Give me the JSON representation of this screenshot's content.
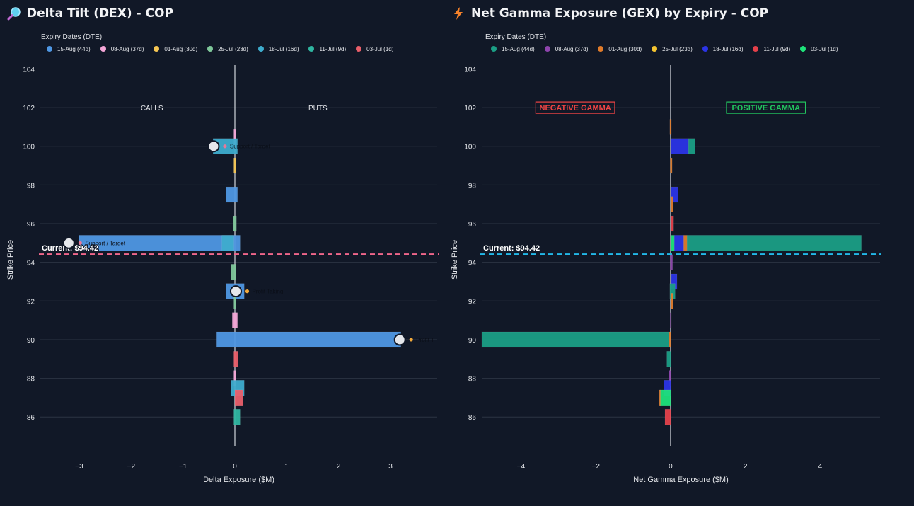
{
  "dex_panel": {
    "title": "Delta Tilt (DEX) - COP",
    "icon": "magnifier-icon",
    "legend_title": "Expiry Dates (DTE)",
    "legend": [
      {
        "label": "15-Aug (44d)",
        "color": "#4f97e3"
      },
      {
        "label": "08-Aug (37d)",
        "color": "#f5a6d8"
      },
      {
        "label": "01-Aug (30d)",
        "color": "#f6c653"
      },
      {
        "label": "25-Jul (23d)",
        "color": "#7fc79a"
      },
      {
        "label": "18-Jul (16d)",
        "color": "#3eaccd"
      },
      {
        "label": "11-Jul (9d)",
        "color": "#2fb6a1"
      },
      {
        "label": "03-Jul (1d)",
        "color": "#ea5f6a"
      }
    ],
    "calls_label": "CALLS",
    "puts_label": "PUTS",
    "current_label": "Current: $94.42",
    "current_line_color": "#f0668a",
    "annotations": [
      {
        "label": "Support / Target",
        "icon": "pin-icon",
        "strike": 100,
        "x": -0.41
      },
      {
        "label": "Support / Target",
        "icon": "pin-icon",
        "strike": 95,
        "x": -3.2
      },
      {
        "label": "Profit Taking",
        "icon": "moneybag-icon",
        "strike": 92.5,
        "x": 0.02
      },
      {
        "label": "Profit T",
        "icon": "moneybag-icon",
        "strike": 90,
        "x": 3.18
      }
    ],
    "chart_data": {
      "type": "bar",
      "orientation": "horizontal",
      "barmode": "stack",
      "xlabel": "Delta Exposure ($M)",
      "ylabel": "Strike Price",
      "xlim": [
        -3.75,
        3.9
      ],
      "ylim": [
        84.8,
        104.2
      ],
      "xticks": [
        -3,
        -2,
        -1,
        0,
        1,
        2,
        3
      ],
      "yticks": [
        86,
        88,
        90,
        92,
        94,
        96,
        98,
        100,
        102,
        104
      ],
      "xtick_labels": [
        "−3",
        "−2",
        "−1",
        "0",
        "1",
        "2",
        "3"
      ],
      "ytick_labels": [
        "86",
        "88",
        "90",
        "92",
        "94",
        "96",
        "98",
        "100",
        "102",
        "104"
      ],
      "current_price": 94.42,
      "bars": [
        {
          "strike": 100.5,
          "series": "08-Aug (37d)",
          "x0": -0.02,
          "x1": 0.02
        },
        {
          "strike": 100,
          "series": "18-Jul (16d)",
          "x0": -0.42,
          "x1": 0.05
        },
        {
          "strike": 99,
          "series": "01-Aug (30d)",
          "x0": -0.02,
          "x1": 0.02
        },
        {
          "strike": 97.5,
          "series": "15-Aug (44d)",
          "x0": -0.17,
          "x1": 0.05
        },
        {
          "strike": 96,
          "series": "25-Jul (23d)",
          "x0": -0.03,
          "x1": 0.03
        },
        {
          "strike": 95,
          "series": "15-Aug (44d)",
          "x0": -3.0,
          "x1": 0.1
        },
        {
          "strike": 95,
          "series": "18-Jul (16d)",
          "x0": -0.25,
          "x1": -0.02
        },
        {
          "strike": 93.5,
          "series": "25-Jul (23d)",
          "x0": -0.07,
          "x1": 0.02
        },
        {
          "strike": 92.5,
          "series": "15-Aug (44d)",
          "x0": -0.17,
          "x1": 0.18
        },
        {
          "strike": 92,
          "series": "25-Jul (23d)",
          "x0": -0.02,
          "x1": 0.02
        },
        {
          "strike": 91,
          "series": "08-Aug (37d)",
          "x0": -0.05,
          "x1": 0.05
        },
        {
          "strike": 90,
          "series": "15-Aug (44d)",
          "x0": -0.35,
          "x1": 3.2
        },
        {
          "strike": 89,
          "series": "03-Jul (1d)",
          "x0": -0.02,
          "x1": 0.06
        },
        {
          "strike": 88,
          "series": "08-Aug (37d)",
          "x0": -0.02,
          "x1": 0.02
        },
        {
          "strike": 87.5,
          "series": "18-Jul (16d)",
          "x0": -0.07,
          "x1": 0.18
        },
        {
          "strike": 87,
          "series": "03-Jul (1d)",
          "x0": 0.0,
          "x1": 0.16
        },
        {
          "strike": 86,
          "series": "11-Jul (9d)",
          "x0": -0.02,
          "x1": 0.1
        }
      ]
    }
  },
  "gex_panel": {
    "title": "Net Gamma Exposure (GEX) by Expiry - COP",
    "icon": "lightning-icon",
    "legend_title": "Expiry Dates (DTE)",
    "legend": [
      {
        "label": "15-Aug (44d)",
        "color": "#1b9e85"
      },
      {
        "label": "08-Aug (37d)",
        "color": "#8e44ad"
      },
      {
        "label": "01-Aug (30d)",
        "color": "#e07b2a"
      },
      {
        "label": "25-Jul (23d)",
        "color": "#f4c430"
      },
      {
        "label": "18-Jul (16d)",
        "color": "#2b34e6"
      },
      {
        "label": "11-Jul (9d)",
        "color": "#e5404a"
      },
      {
        "label": "03-Jul (1d)",
        "color": "#1ee27a"
      }
    ],
    "negative_label": "NEGATIVE GAMMA",
    "positive_label": "POSITIVE GAMMA",
    "current_label": "Current: $94.42",
    "current_line_color": "#22b8e8",
    "chart_data": {
      "type": "bar",
      "orientation": "horizontal",
      "barmode": "relative",
      "xlabel": "Net Gamma Exposure ($M)",
      "ylabel": "Strike Price",
      "xlim": [
        -5.05,
        5.6
      ],
      "ylim": [
        84.8,
        104.2
      ],
      "xticks": [
        -4,
        -2,
        0,
        2,
        4
      ],
      "yticks": [
        86,
        88,
        90,
        92,
        94,
        96,
        98,
        100,
        102,
        104
      ],
      "xtick_labels": [
        "−4",
        "−2",
        "0",
        "2",
        "4"
      ],
      "ytick_labels": [
        "86",
        "88",
        "90",
        "92",
        "94",
        "96",
        "98",
        "100",
        "102",
        "104"
      ],
      "current_price": 94.42,
      "bars": [
        {
          "strike": 101,
          "series": "01-Aug (30d)",
          "x0": -0.02,
          "x1": 0.02
        },
        {
          "strike": 100,
          "series": "18-Jul (16d)",
          "x0": 0.0,
          "x1": 0.48
        },
        {
          "strike": 100,
          "series": "15-Aug (44d)",
          "x0": 0.48,
          "x1": 0.65
        },
        {
          "strike": 99,
          "series": "01-Aug (30d)",
          "x0": -0.01,
          "x1": 0.04
        },
        {
          "strike": 97.5,
          "series": "18-Jul (16d)",
          "x0": 0.0,
          "x1": 0.2
        },
        {
          "strike": 97,
          "series": "01-Aug (30d)",
          "x0": 0.0,
          "x1": 0.07
        },
        {
          "strike": 96,
          "series": "11-Jul (9d)",
          "x0": 0.0,
          "x1": 0.08
        },
        {
          "strike": 95,
          "series": "03-Jul (1d)",
          "x0": 0.0,
          "x1": 0.1
        },
        {
          "strike": 95,
          "series": "18-Jul (16d)",
          "x0": 0.1,
          "x1": 0.35
        },
        {
          "strike": 95,
          "series": "01-Aug (30d)",
          "x0": 0.35,
          "x1": 0.44
        },
        {
          "strike": 95,
          "series": "15-Aug (44d)",
          "x0": 0.44,
          "x1": 5.1
        },
        {
          "strike": 94,
          "series": "08-Aug (37d)",
          "x0": -0.01,
          "x1": 0.05
        },
        {
          "strike": 93,
          "series": "18-Jul (16d)",
          "x0": 0.02,
          "x1": 0.17
        },
        {
          "strike": 92.5,
          "series": "15-Aug (44d)",
          "x0": -0.02,
          "x1": 0.12
        },
        {
          "strike": 92,
          "series": "01-Aug (30d)",
          "x0": 0.0,
          "x1": 0.06
        },
        {
          "strike": 91,
          "series": "08-Aug (37d)",
          "x0": -0.01,
          "x1": 0.01
        },
        {
          "strike": 90,
          "series": "15-Aug (44d)",
          "x0": -5.05,
          "x1": -0.05
        },
        {
          "strike": 90,
          "series": "01-Aug (30d)",
          "x0": -0.05,
          "x1": 0.0
        },
        {
          "strike": 89,
          "series": "15-Aug (44d)",
          "x0": -0.1,
          "x1": 0.0
        },
        {
          "strike": 88,
          "series": "08-Aug (37d)",
          "x0": -0.05,
          "x1": 0.0
        },
        {
          "strike": 87.5,
          "series": "18-Jul (16d)",
          "x0": -0.18,
          "x1": 0.0
        },
        {
          "strike": 87,
          "series": "03-Jul (1d)",
          "x0": -0.28,
          "x1": 0.0
        },
        {
          "strike": 87,
          "series": "01-Aug (30d)",
          "x0": -0.3,
          "x1": -0.28
        },
        {
          "strike": 86,
          "series": "11-Jul (9d)",
          "x0": -0.15,
          "x1": 0.0
        }
      ]
    }
  }
}
